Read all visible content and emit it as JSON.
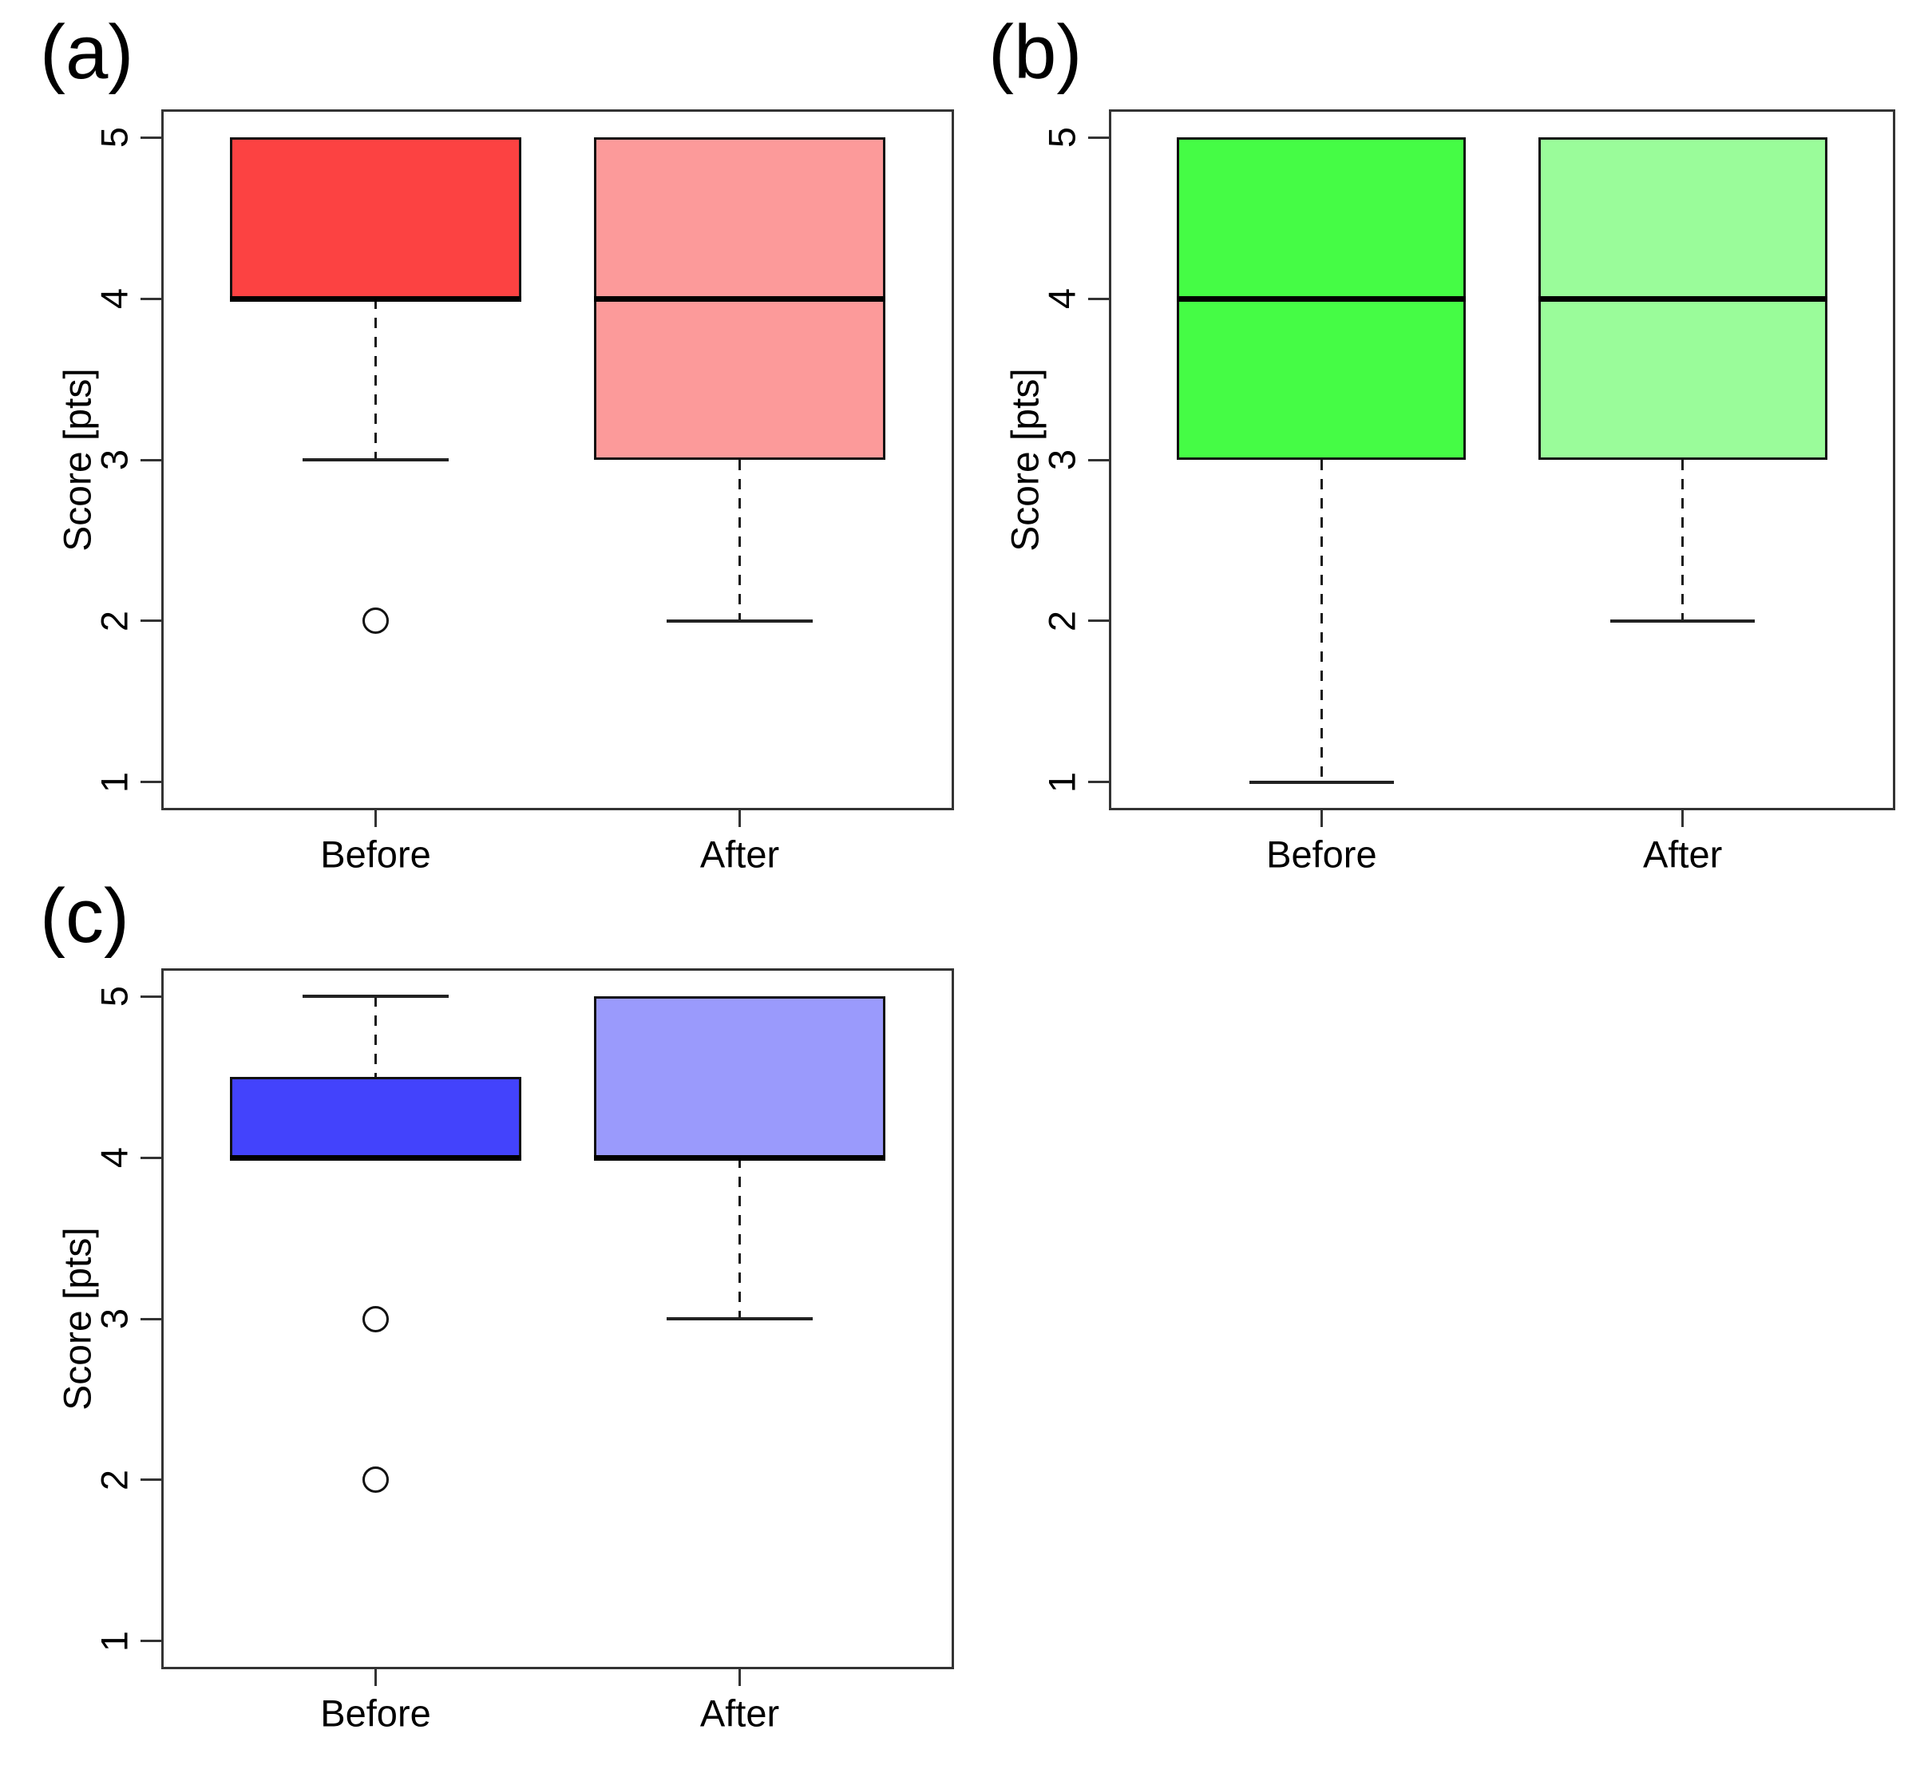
{
  "chart_data": {
    "type": "box",
    "categories": [
      "Before",
      "After"
    ],
    "ylim": [
      0.84,
      5.16
    ],
    "yticks": [
      1,
      2,
      3,
      4,
      5
    ],
    "grid": false,
    "legend": "none",
    "panels": [
      {
        "label": "(a)",
        "ylabel": "Score [pts]",
        "series": [
          {
            "category": "Before",
            "fill": "#FC4242",
            "q1": 4,
            "median": 4,
            "q3": 5,
            "whisker_low": 3,
            "whisker_high": 5,
            "outliers": [
              2
            ]
          },
          {
            "category": "After",
            "fill": "#FC9A9A",
            "q1": 3,
            "median": 4,
            "q3": 5,
            "whisker_low": 2,
            "whisker_high": 5,
            "outliers": []
          }
        ]
      },
      {
        "label": "(b)",
        "ylabel": "Score [pts]",
        "series": [
          {
            "category": "Before",
            "fill": "#45FC45",
            "q1": 3,
            "median": 4,
            "q3": 5,
            "whisker_low": 1,
            "whisker_high": 5,
            "outliers": []
          },
          {
            "category": "After",
            "fill": "#9AFC9A",
            "q1": 3,
            "median": 4,
            "q3": 5,
            "whisker_low": 2,
            "whisker_high": 5,
            "outliers": []
          }
        ]
      },
      {
        "label": "(c)",
        "ylabel": "Score [pts]",
        "series": [
          {
            "category": "Before",
            "fill": "#4343FC",
            "q1": 4,
            "median": 4,
            "q3": 4.5,
            "whisker_low": 4,
            "whisker_high": 5,
            "outliers": [
              3,
              2
            ]
          },
          {
            "category": "After",
            "fill": "#9A9AFC",
            "q1": 4,
            "median": 4,
            "q3": 5,
            "whisker_low": 3,
            "whisker_high": 5,
            "outliers": []
          }
        ]
      }
    ],
    "style": {
      "median_color": "#000000",
      "box_border_color": "#111111",
      "whisker_color": "#1a1a1a",
      "axis_color": "#333333",
      "background": "#ffffff"
    }
  }
}
